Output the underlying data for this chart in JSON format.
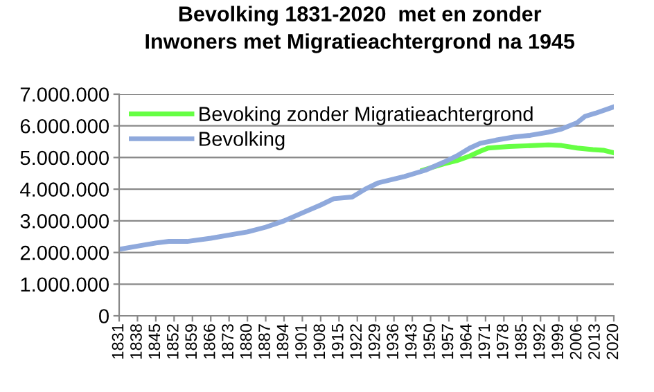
{
  "chart_data": {
    "type": "line",
    "title": "Bevolking 1831-2020  met en zonder\nInwoners met Migratieachtergrond na 1945",
    "series": [
      {
        "name": "Bevoking zonder Migratieachtergrond",
        "color": "#66ff44",
        "x": [
          1947,
          1955,
          1960,
          1965,
          1969,
          1972,
          1980,
          1990,
          1995,
          2000,
          2006,
          2012,
          2016,
          2020
        ],
        "values": [
          4600000,
          4800000,
          4900000,
          5050000,
          5200000,
          5300000,
          5350000,
          5380000,
          5400000,
          5380000,
          5300000,
          5250000,
          5230000,
          5150000
        ]
      },
      {
        "name": "Bevolking",
        "color": "#8fa9dc",
        "x": [
          1831,
          1838,
          1845,
          1850,
          1857,
          1866,
          1873,
          1880,
          1887,
          1894,
          1901,
          1908,
          1913,
          1920,
          1925,
          1930,
          1940,
          1948,
          1955,
          1960,
          1965,
          1969,
          1975,
          1982,
          1988,
          1995,
          2000,
          2006,
          2009,
          2013,
          2020
        ],
        "values": [
          2100000,
          2200000,
          2300000,
          2350000,
          2350000,
          2450000,
          2550000,
          2650000,
          2800000,
          3000000,
          3250000,
          3500000,
          3700000,
          3750000,
          4000000,
          4200000,
          4400000,
          4600000,
          4850000,
          5050000,
          5300000,
          5450000,
          5550000,
          5650000,
          5700000,
          5800000,
          5900000,
          6100000,
          6300000,
          6400000,
          6600000
        ]
      }
    ],
    "xlim": [
      1831,
      2020
    ],
    "xticks": [
      1831,
      1838,
      1845,
      1852,
      1859,
      1866,
      1873,
      1880,
      1887,
      1894,
      1901,
      1908,
      1915,
      1922,
      1929,
      1936,
      1943,
      1950,
      1957,
      1964,
      1971,
      1978,
      1985,
      1992,
      1999,
      2006,
      2013,
      2020
    ],
    "ylim": [
      0,
      7000000
    ],
    "yticks": [
      {
        "value": 0,
        "label": "0"
      },
      {
        "value": 1000000,
        "label": "1.000.000"
      },
      {
        "value": 2000000,
        "label": "2.000.000"
      },
      {
        "value": 3000000,
        "label": "3.000.000"
      },
      {
        "value": 4000000,
        "label": "4.000.000"
      },
      {
        "value": 5000000,
        "label": "5.000.000"
      },
      {
        "value": 6000000,
        "label": "6.000.000"
      },
      {
        "value": 7000000,
        "label": "7.000.000"
      }
    ],
    "grid": "y",
    "legend": "top left",
    "marker": "none",
    "line_style": "solid"
  }
}
